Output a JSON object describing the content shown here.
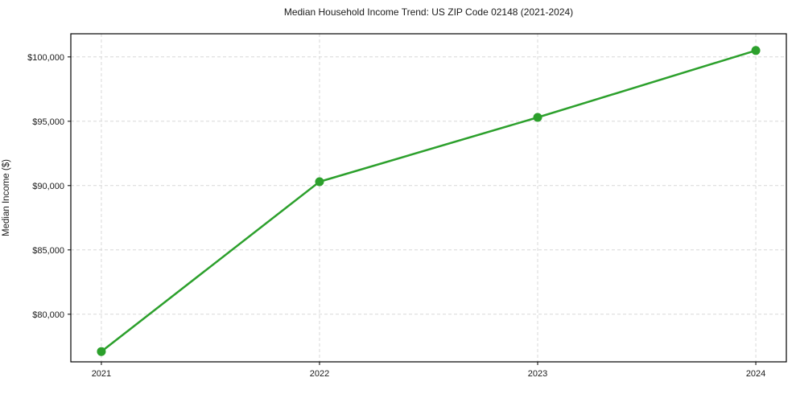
{
  "chart_data": {
    "type": "line",
    "title": "Median Household Income Trend: US ZIP Code 02148 (2021-2024)",
    "xlabel": "",
    "ylabel": "Median Income ($)",
    "series": [
      {
        "name": "Median Household Income",
        "x": [
          2021,
          2022,
          2023,
          2024
        ],
        "values": [
          77100,
          90300,
          95300,
          100500
        ]
      }
    ],
    "xticks": [
      2021,
      2022,
      2023,
      2024
    ],
    "xtick_labels": [
      "2021",
      "2022",
      "2023",
      "2024"
    ],
    "yticks": [
      80000,
      85000,
      90000,
      95000,
      100000
    ],
    "ytick_labels": [
      "$80,000",
      "$85,000",
      "$90,000",
      "$95,000",
      "$100,000"
    ],
    "xlim": [
      2020.86,
      2024.14
    ],
    "ylim": [
      76300,
      101800
    ],
    "grid": "both, dashed, below data",
    "legend": "none",
    "colors": {
      "line": "#2ca02c",
      "marker": "#2ca02c",
      "grid": "#d8d8d8",
      "axis": "#000000",
      "text": "#1a1a1a",
      "background": "#ffffff"
    }
  }
}
